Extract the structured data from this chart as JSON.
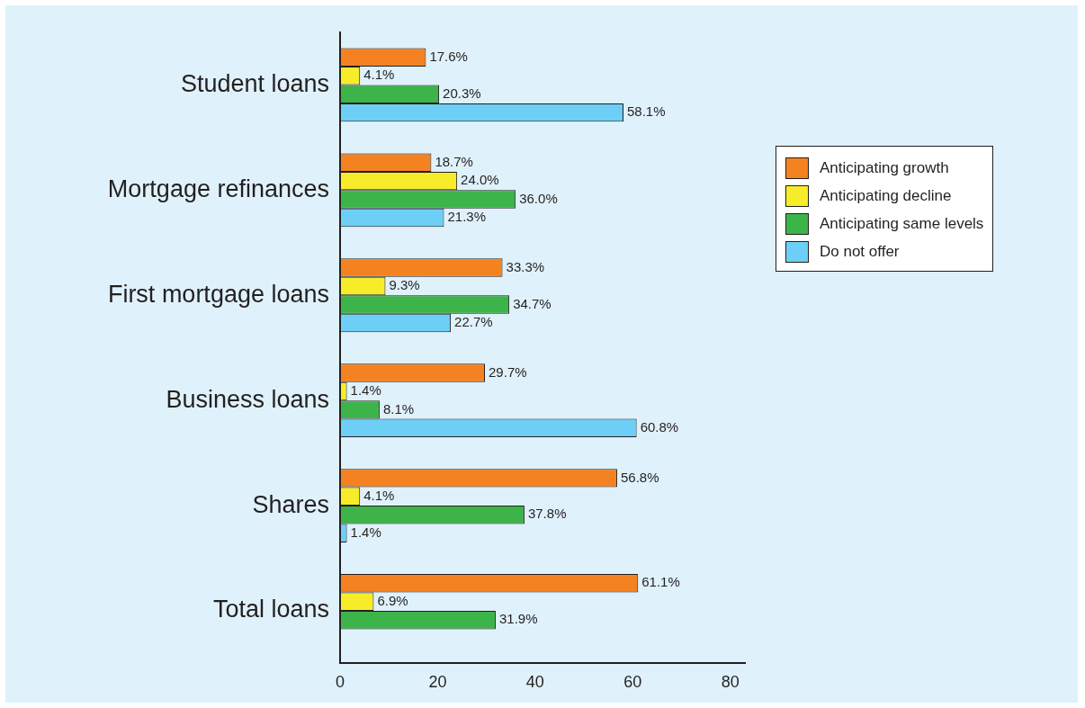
{
  "chart_data": {
    "type": "bar",
    "orientation": "horizontal",
    "categories": [
      "Student loans",
      "Mortgage refinances",
      "First mortgage loans",
      "Business loans",
      "Shares",
      "Total loans"
    ],
    "series": [
      {
        "name": "Anticipating growth",
        "color": "#f58220",
        "values": [
          17.6,
          18.7,
          33.3,
          29.7,
          56.8,
          61.1
        ],
        "value_labels": [
          "17.6%",
          "18.7%",
          "33.3%",
          "29.7%",
          "56.8%",
          "61.1%"
        ]
      },
      {
        "name": "Anticipating decline",
        "color": "#f7ec2a",
        "values": [
          4.1,
          24.0,
          9.3,
          1.4,
          4.1,
          6.9
        ],
        "value_labels": [
          "4.1%",
          "24.0%",
          "9.3%",
          "1.4%",
          "4.1%",
          "6.9%"
        ]
      },
      {
        "name": "Anticipating same levels",
        "color": "#3cb44a",
        "values": [
          20.3,
          36.0,
          34.7,
          8.1,
          37.8,
          31.9
        ],
        "value_labels": [
          "20.3%",
          "36.0%",
          "34.7%",
          "8.1%",
          "37.8%",
          "31.9%"
        ]
      },
      {
        "name": "Do not offer",
        "color": "#6dcff6",
        "values": [
          58.1,
          21.3,
          22.7,
          60.8,
          1.4,
          null
        ],
        "value_labels": [
          "58.1%",
          "21.3%",
          "22.7%",
          "60.8%",
          "1.4%",
          null
        ]
      }
    ],
    "xlim": [
      0,
      83
    ],
    "xticks": [
      0,
      20,
      40,
      60,
      80
    ],
    "grid": false,
    "legend": "right"
  }
}
